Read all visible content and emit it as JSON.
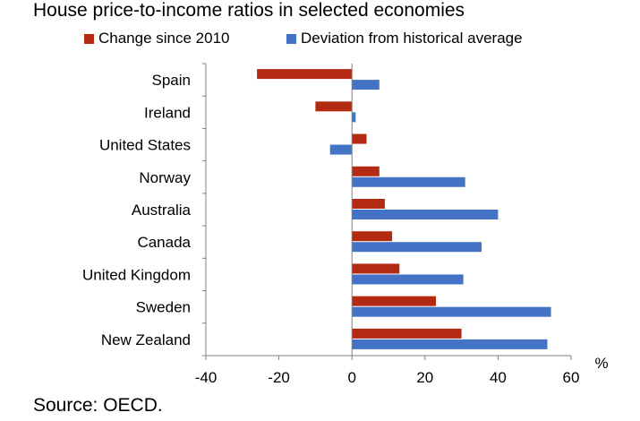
{
  "title": "House price-to-income ratios in selected economies",
  "source": "Source: OECD.",
  "chart_data": {
    "type": "bar",
    "orientation": "horizontal",
    "categories": [
      "Spain",
      "Ireland",
      "United States",
      "Norway",
      "Australia",
      "Canada",
      "United Kingdom",
      "Sweden",
      "New Zealand"
    ],
    "series": [
      {
        "name": "Change since 2010",
        "color": "#b22a12",
        "values": [
          -26,
          -10,
          4,
          7.5,
          9,
          11,
          13,
          23,
          30
        ]
      },
      {
        "name": "Deviation from historical average",
        "color": "#4472c4",
        "values": [
          7.5,
          1,
          -6,
          31,
          40,
          35.5,
          30.5,
          54.5,
          53.5
        ]
      }
    ],
    "xlim": [
      -40,
      60
    ],
    "xticks": [
      -40,
      -20,
      0,
      20,
      40,
      60
    ],
    "xunit": "%",
    "grid": false,
    "legend_position": "top"
  }
}
